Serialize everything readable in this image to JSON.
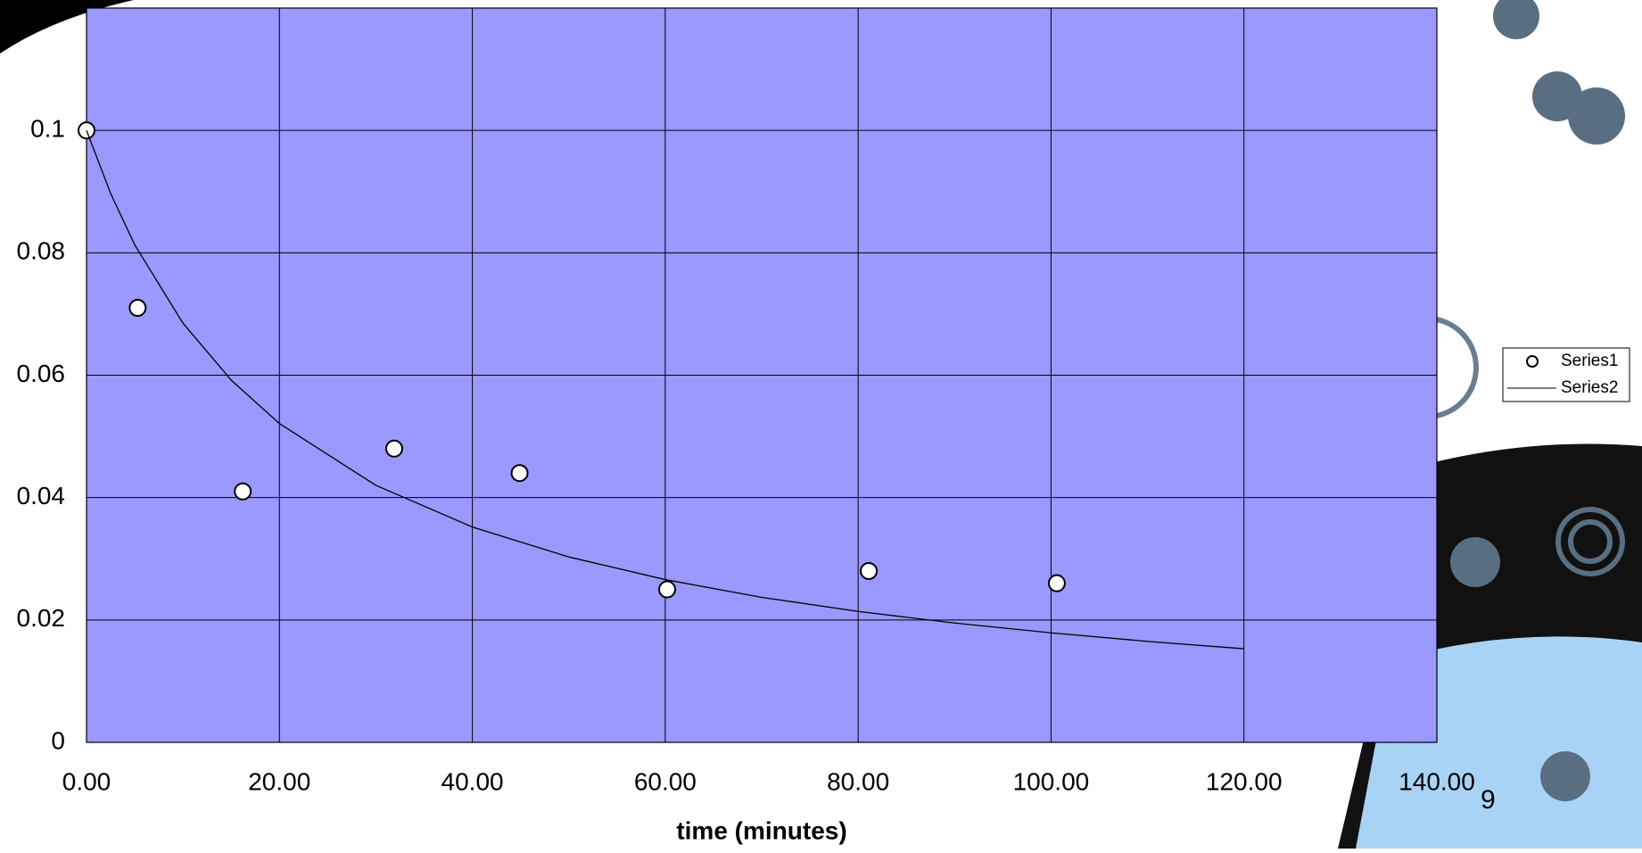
{
  "chart_data": {
    "type": "scatter",
    "x_label": "time (minutes)",
    "xlim": [
      0,
      140
    ],
    "xticks": [
      {
        "value": 0,
        "label": "0.00"
      },
      {
        "value": 20,
        "label": "20.00"
      },
      {
        "value": 40,
        "label": "40.00"
      },
      {
        "value": 60,
        "label": "60.00"
      },
      {
        "value": 80,
        "label": "80.00"
      },
      {
        "value": 100,
        "label": "100.00"
      },
      {
        "value": 120,
        "label": "120.00"
      },
      {
        "value": 140,
        "label": "140.00"
      }
    ],
    "ylim": [
      0,
      0.12
    ],
    "yticks": [
      0,
      0.02,
      0.04,
      0.06,
      0.08,
      0.1
    ],
    "grid": true,
    "background": "#9999ff",
    "legend": "right",
    "series": [
      {
        "name": "Series1",
        "mode": "markers",
        "color": "#000000",
        "x": [
          0,
          5.3,
          16.2,
          31.9,
          44.9,
          60.2,
          81.1,
          100.6
        ],
        "values": [
          0.1,
          0.071,
          0.041,
          0.048,
          0.044,
          0.025,
          0.028,
          0.026
        ]
      },
      {
        "name": "Series2",
        "mode": "line",
        "color": "#000000",
        "x": [
          0,
          2.5,
          5,
          10,
          15,
          20,
          30,
          40,
          50,
          60,
          70,
          80,
          90,
          100,
          110,
          120
        ],
        "values": [
          0.1,
          0.0897,
          0.0813,
          0.0685,
          0.0592,
          0.0521,
          0.042,
          0.0352,
          0.0303,
          0.0266,
          0.0237,
          0.0214,
          0.0195,
          0.0179,
          0.0165,
          0.0153
        ]
      }
    ]
  },
  "slide_number": "9"
}
